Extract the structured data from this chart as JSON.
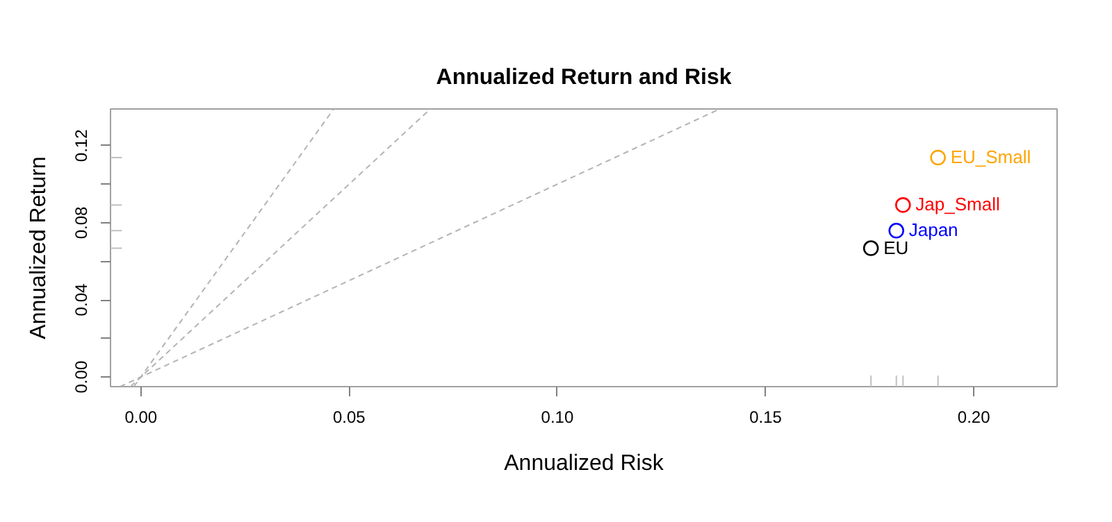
{
  "chart_data": {
    "type": "scatter",
    "title": "Annualized Return and Risk",
    "xlabel": "Annualized Risk",
    "ylabel": "Annualized Return",
    "xlim": [
      -0.0073,
      0.22
    ],
    "ylim": [
      -0.005,
      0.139
    ],
    "xticks": [
      {
        "value": 0,
        "label": "0.00"
      },
      0.05,
      {
        "value": 0.1,
        "label": "0.10"
      },
      0.15,
      {
        "value": 0.2,
        "label": "0.20"
      }
    ],
    "yticks": [
      {
        "value": 0,
        "label": "0.00"
      },
      {
        "value": 0.02,
        "label": null
      },
      0.04,
      {
        "value": 0.06,
        "label": null
      },
      0.08,
      {
        "value": 0.1,
        "label": null
      },
      0.12
    ],
    "marker": "circle",
    "series": [
      {
        "name": "EU",
        "color": "#000000",
        "x": [
          0.1753
        ],
        "values": [
          0.0668
        ]
      },
      {
        "name": "Japan",
        "color": "#0000ff",
        "x": [
          0.1814
        ],
        "values": [
          0.0759
        ]
      },
      {
        "name": "Jap_Small",
        "color": "#ff0000",
        "x": [
          0.183
        ],
        "values": [
          0.0892
        ]
      },
      {
        "name": "EU_Small",
        "color": "#ffa500",
        "x": [
          0.1914
        ],
        "values": [
          0.1138
        ]
      },
      {
        "type": "line",
        "line_style": "dashed",
        "marker": "none",
        "color": "#b3b3b3",
        "x": [
          -0.005,
          0.139
        ],
        "values": [
          -0.005,
          0.139
        ]
      },
      {
        "type": "line",
        "line_style": "dashed",
        "marker": "none",
        "color": "#b3b3b3",
        "x": [
          -0.0025,
          0.0695
        ],
        "values": [
          -0.005,
          0.139
        ]
      },
      {
        "type": "line",
        "line_style": "dashed",
        "marker": "none",
        "color": "#b3b3b3",
        "x": [
          -0.0017,
          0.0463
        ],
        "values": [
          -0.005,
          0.139
        ]
      }
    ]
  }
}
